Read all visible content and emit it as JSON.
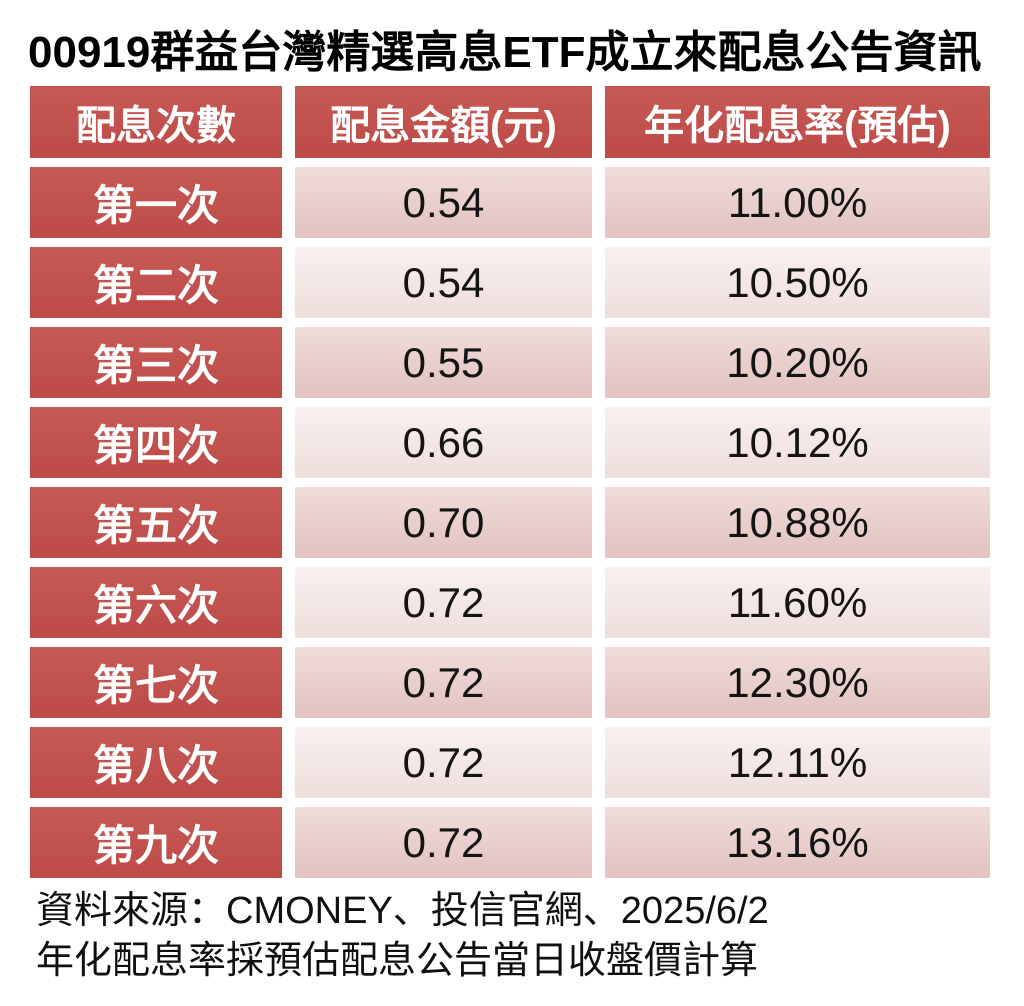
{
  "title": "00919群益台灣精選高息ETF成立來配息公告資訊",
  "colors": {
    "header_red": "#C0504D",
    "band_dark_pink": "#E5C8C6",
    "band_light_pink": "#F2E6E4",
    "gutter_white": "#FFFFFF",
    "header_text": "#FFFFFF",
    "value_text": "#141414",
    "title_text": "#000000"
  },
  "chart_data": {
    "type": "table",
    "title": "00919群益台灣精選高息ETF成立來配息公告資訊",
    "columns": [
      "配息次數",
      "配息金額(元)",
      "年化配息率(預估)"
    ],
    "rows": [
      [
        "第一次",
        "0.54",
        "11.00%"
      ],
      [
        "第二次",
        "0.54",
        "10.50%"
      ],
      [
        "第三次",
        "0.55",
        "10.20%"
      ],
      [
        "第四次",
        "0.66",
        "10.12%"
      ],
      [
        "第五次",
        "0.70",
        "10.88%"
      ],
      [
        "第六次",
        "0.72",
        "11.60%"
      ],
      [
        "第七次",
        "0.72",
        "12.30%"
      ],
      [
        "第八次",
        "0.72",
        "12.11%"
      ],
      [
        "第九次",
        "0.72",
        "13.16%"
      ]
    ],
    "dividend_amounts_ntd": [
      0.54,
      0.54,
      0.55,
      0.66,
      0.7,
      0.72,
      0.72,
      0.72,
      0.72
    ],
    "annualized_yield_pct": [
      11.0,
      10.5,
      10.2,
      10.12,
      10.88,
      11.6,
      12.3,
      12.11,
      13.16
    ],
    "layout_hints": {
      "banding": "alternating dark/light pink data rows",
      "header_style": "red with white bold text"
    }
  },
  "footer": {
    "line1": "資料來源：CMONEY、投信官網、2025/6/2",
    "line2": "年化配息率採預估配息公告當日收盤價計算"
  }
}
